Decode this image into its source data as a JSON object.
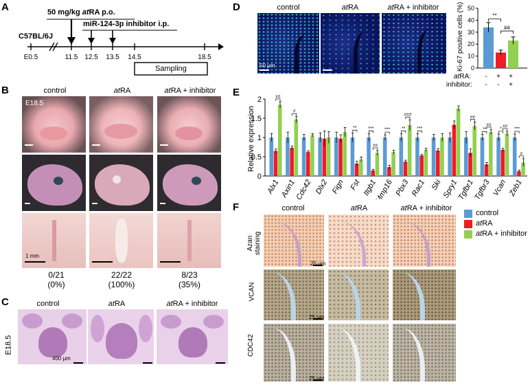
{
  "panel_letters": {
    "a": "A",
    "b": "B",
    "c": "C",
    "d": "D",
    "e": "E",
    "f": "F"
  },
  "panelA": {
    "strain": "C57BL/6J",
    "treatment1_dose": "50 mg/kg ",
    "treatment1_drug": "at",
    "treatment1_drug2": "RA p.o.",
    "treatment2": "miR-124-3p inhibitor i.p.",
    "sampling": "Sampling",
    "timepoints": [
      "E0.5",
      "11.5",
      "12.5",
      "13.5",
      "14.5",
      "18.5"
    ]
  },
  "panelB": {
    "col1": "control",
    "col2_it": "at",
    "col2": "RA",
    "col3_it": "at",
    "col3": "RA + inhibitor",
    "stage": "E18.5",
    "scale": "1 mm",
    "counts": [
      "0/21",
      "22/22",
      "8/23"
    ],
    "percents": [
      "(0%)",
      "(100%)",
      "(35%)"
    ]
  },
  "panelC": {
    "col1": "control",
    "col2_it": "at",
    "col2": "RA",
    "col3_it": "at",
    "col3": "RA + inhibitor",
    "stage": "E18.5",
    "scale": "400 μm"
  },
  "panelD": {
    "col1": "control",
    "col2_it": "at",
    "col2": "RA",
    "col3_it": "at",
    "col3": "RA + inhibitor",
    "scale": "50 μm",
    "row1_label_it": "at",
    "row1_label": "RA:",
    "row2_label": "inhibitor:",
    "row1_signs": [
      "-",
      "+",
      "+"
    ],
    "row2_signs": [
      "-",
      "-",
      "+"
    ],
    "sig1": "**",
    "sig2": "##"
  },
  "panelF": {
    "col1": "control",
    "col2_it": "at",
    "col2": "RA",
    "col3_it": "at",
    "col3": "RA + inhibitor",
    "rows": [
      "Azan staining",
      "VCAN",
      "CDC42"
    ],
    "scale": "25 μm"
  },
  "legend": {
    "items": [
      {
        "label": "control",
        "color": "#5b9bd5"
      },
      {
        "label_it": "at",
        "label": "RA",
        "color": "#ee1c25"
      },
      {
        "label_it": "at",
        "label": "RA + inhibitor",
        "color": "#92d050"
      }
    ]
  },
  "colors": {
    "control": "#5b9bd5",
    "atRA": "#ee1c25",
    "inhibitor": "#92d050"
  },
  "chart_data": [
    {
      "type": "bar",
      "ylabel": "Ki-67 positive cells (%)",
      "ylim": [
        0,
        50
      ],
      "yticks": [
        0,
        10,
        20,
        30,
        40,
        50
      ],
      "values": [
        34,
        13,
        23
      ],
      "errors": [
        4,
        2,
        3
      ],
      "colors": [
        "#5b9bd5",
        "#ee1c25",
        "#92d050"
      ]
    },
    {
      "type": "bar",
      "ylabel": "Relative expression",
      "ylim": [
        0,
        2
      ],
      "yticks": [
        "0",
        "0.5",
        "1",
        "1.5",
        "2"
      ],
      "categories": [
        "Alx1",
        "Axin1",
        "Cdc42",
        "Dlx2",
        "Fign",
        "Fst",
        "Itgb1",
        "Mmp16",
        "Pbx3",
        "Rac1",
        "Ski",
        "Spry1",
        "Tgfbr1",
        "Tgfbr3",
        "Vcan",
        "Zeb1"
      ],
      "series": [
        {
          "name": "control",
          "values": [
            1.0,
            1.0,
            1.0,
            1.0,
            1.0,
            1.0,
            1.0,
            1.0,
            1.0,
            1.0,
            1.0,
            1.0,
            1.0,
            1.0,
            1.0,
            1.0
          ]
        },
        {
          "name": "atRA",
          "values": [
            0.65,
            0.73,
            0.62,
            0.97,
            0.97,
            0.32,
            0.14,
            0.23,
            0.37,
            0.53,
            0.66,
            1.33,
            0.6,
            0.3,
            0.68,
            0.12
          ]
        },
        {
          "name": "atRA + inhibitor",
          "values": [
            1.85,
            1.47,
            1.06,
            1.0,
            1.14,
            0.43,
            0.6,
            0.62,
            1.32,
            0.68,
            1.0,
            1.75,
            1.3,
            1.14,
            1.1,
            0.35
          ]
        }
      ],
      "errors": [
        [
          0.1,
          0.14,
          0.08,
          0.12,
          0.14,
          0.12,
          0.1,
          0.07,
          0.1,
          0.1,
          0.08,
          0.12,
          0.15,
          0.08,
          0.09,
          0.09
        ],
        [
          0.05,
          0.05,
          0.03,
          0.2,
          0.1,
          0.06,
          0.03,
          0.05,
          0.04,
          0.03,
          0.05,
          0.1,
          0.1,
          0.05,
          0.04,
          0.03
        ],
        [
          0.08,
          0.08,
          0.04,
          0.15,
          0.12,
          0.06,
          0.06,
          0.05,
          0.14,
          0.04,
          0.1,
          0.07,
          0.1,
          0.06,
          0.06,
          0.1
        ]
      ],
      "sig_control": [
        "",
        "",
        "",
        "",
        "",
        "**",
        "***",
        "***",
        "**",
        "***",
        "",
        "",
        "",
        "**",
        "*",
        "***"
      ],
      "sig_inhibitor": [
        "##",
        "#",
        "",
        "",
        "",
        "",
        "##",
        "",
        "###",
        "",
        "",
        "",
        "##",
        "##",
        "##",
        "#"
      ]
    }
  ]
}
